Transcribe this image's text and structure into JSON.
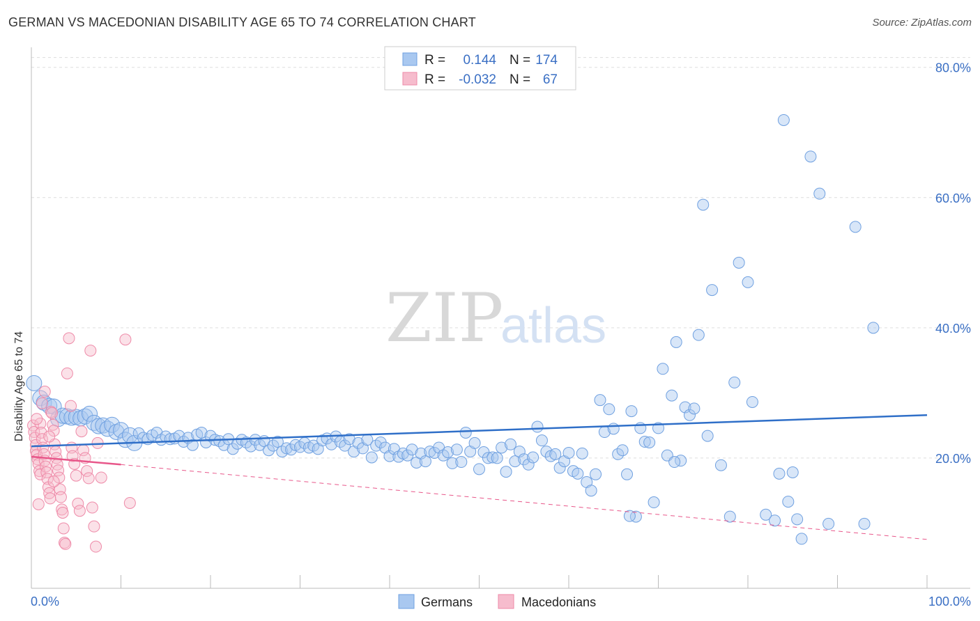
{
  "title": "GERMAN VS MACEDONIAN DISABILITY AGE 65 TO 74 CORRELATION CHART",
  "source": "Source: ZipAtlas.com",
  "watermark": {
    "zip": "ZIP",
    "atlas": "atlas"
  },
  "colors": {
    "germans": "#6fa0e0",
    "germans_fill": "#a9c8f0",
    "germans_line": "#2f6fc8",
    "macedonians": "#ee8aa8",
    "macedonians_fill": "#f6bccd",
    "macedonians_line": "#e8578a",
    "axis_text": "#3a6fc4",
    "grid": "#dddddd"
  },
  "legend": {
    "rows": [
      {
        "r_label": "R =",
        "r_value": "0.144",
        "n_label": "N =",
        "n_value": "174"
      },
      {
        "r_label": "R =",
        "r_value": "-0.032",
        "n_label": "N =",
        "n_value": "67"
      }
    ]
  },
  "bottom_legend": [
    "Germans",
    "Macedonians"
  ],
  "chart_data": {
    "type": "scatter",
    "ylabel": "Disability Age 65 to 74",
    "xlim": [
      0,
      100
    ],
    "ylim": [
      0,
      82
    ],
    "x_tick_labels": [
      "0.0%",
      "100.0%"
    ],
    "y_ticks": [
      20,
      40,
      60,
      80
    ],
    "y_tick_labels": [
      "20.0%",
      "40.0%",
      "60.0%",
      "80.0%"
    ],
    "grid": true,
    "legend_position": "top-center",
    "series": [
      {
        "name": "Germans",
        "r": 0.144,
        "n": 174,
        "trend": {
          "x": [
            0,
            100
          ],
          "y": [
            21.8,
            26.6
          ]
        },
        "points": [
          [
            0.3,
            31.5
          ],
          [
            1.0,
            29.2
          ],
          [
            1.4,
            28.5
          ],
          [
            2.0,
            28.0
          ],
          [
            2.5,
            27.9
          ],
          [
            3.0,
            26.0
          ],
          [
            3.5,
            26.5
          ],
          [
            4.0,
            26.4
          ],
          [
            4.5,
            26.2
          ],
          [
            5.0,
            26.3
          ],
          [
            5.5,
            26.1
          ],
          [
            6.0,
            26.4
          ],
          [
            6.5,
            26.8
          ],
          [
            7.0,
            25.4
          ],
          [
            7.5,
            24.9
          ],
          [
            8.0,
            25.0
          ],
          [
            8.5,
            24.5
          ],
          [
            9.0,
            25.1
          ],
          [
            9.5,
            24.0
          ],
          [
            10.0,
            24.3
          ],
          [
            10.5,
            22.8
          ],
          [
            11.0,
            23.5
          ],
          [
            11.5,
            22.3
          ],
          [
            12.0,
            23.8
          ],
          [
            12.5,
            23.1
          ],
          [
            13.0,
            22.9
          ],
          [
            13.5,
            23.5
          ],
          [
            14.0,
            23.9
          ],
          [
            14.5,
            22.8
          ],
          [
            15.0,
            23.3
          ],
          [
            15.5,
            22.9
          ],
          [
            16.0,
            23.0
          ],
          [
            16.5,
            23.4
          ],
          [
            17.0,
            22.5
          ],
          [
            17.5,
            23.1
          ],
          [
            18.0,
            22.0
          ],
          [
            18.5,
            23.6
          ],
          [
            19.0,
            23.9
          ],
          [
            19.5,
            22.4
          ],
          [
            20.0,
            23.4
          ],
          [
            20.5,
            22.8
          ],
          [
            21.0,
            22.6
          ],
          [
            21.5,
            22.0
          ],
          [
            22.0,
            22.9
          ],
          [
            22.5,
            21.4
          ],
          [
            23.0,
            22.2
          ],
          [
            23.5,
            22.8
          ],
          [
            24.0,
            22.4
          ],
          [
            24.5,
            21.8
          ],
          [
            25.0,
            22.8
          ],
          [
            25.5,
            22.0
          ],
          [
            26.0,
            22.6
          ],
          [
            26.5,
            21.2
          ],
          [
            27.0,
            21.9
          ],
          [
            27.5,
            22.5
          ],
          [
            28.0,
            21.0
          ],
          [
            28.5,
            21.5
          ],
          [
            29.0,
            21.3
          ],
          [
            29.5,
            22.0
          ],
          [
            30.0,
            21.7
          ],
          [
            30.5,
            22.3
          ],
          [
            31.0,
            21.6
          ],
          [
            31.5,
            21.9
          ],
          [
            32.0,
            21.4
          ],
          [
            32.5,
            22.7
          ],
          [
            33.0,
            23.0
          ],
          [
            33.5,
            22.1
          ],
          [
            34.0,
            23.3
          ],
          [
            34.5,
            22.5
          ],
          [
            35.0,
            21.9
          ],
          [
            35.5,
            22.9
          ],
          [
            36.0,
            21.0
          ],
          [
            36.5,
            22.3
          ],
          [
            37.0,
            21.5
          ],
          [
            37.5,
            22.8
          ],
          [
            38.0,
            20.1
          ],
          [
            38.5,
            21.9
          ],
          [
            39.0,
            22.4
          ],
          [
            39.5,
            21.6
          ],
          [
            40.0,
            20.3
          ],
          [
            40.5,
            21.4
          ],
          [
            41.0,
            20.2
          ],
          [
            41.5,
            20.7
          ],
          [
            42.0,
            20.4
          ],
          [
            42.5,
            21.3
          ],
          [
            43.0,
            19.3
          ],
          [
            43.5,
            20.7
          ],
          [
            44.0,
            19.5
          ],
          [
            44.5,
            21.0
          ],
          [
            45.0,
            20.8
          ],
          [
            45.5,
            21.6
          ],
          [
            46.0,
            20.4
          ],
          [
            46.5,
            20.9
          ],
          [
            47.0,
            19.2
          ],
          [
            47.5,
            21.3
          ],
          [
            48.0,
            19.4
          ],
          [
            48.5,
            23.9
          ],
          [
            49.0,
            21.0
          ],
          [
            49.5,
            22.3
          ],
          [
            50.0,
            18.3
          ],
          [
            50.5,
            20.9
          ],
          [
            51.0,
            20.0
          ],
          [
            51.5,
            20.1
          ],
          [
            52.0,
            20.0
          ],
          [
            52.5,
            21.6
          ],
          [
            53.0,
            17.9
          ],
          [
            53.5,
            22.1
          ],
          [
            54.0,
            19.5
          ],
          [
            54.5,
            21.0
          ],
          [
            55.0,
            19.8
          ],
          [
            55.5,
            19.0
          ],
          [
            56.0,
            20.1
          ],
          [
            56.5,
            24.8
          ],
          [
            57.0,
            22.7
          ],
          [
            57.5,
            21.0
          ],
          [
            58.0,
            20.3
          ],
          [
            58.5,
            20.6
          ],
          [
            59.0,
            18.5
          ],
          [
            59.5,
            19.5
          ],
          [
            60.0,
            20.8
          ],
          [
            60.5,
            18.0
          ],
          [
            61.0,
            17.6
          ],
          [
            61.5,
            20.7
          ],
          [
            62.0,
            16.3
          ],
          [
            62.5,
            15.0
          ],
          [
            63.0,
            17.5
          ],
          [
            63.5,
            28.9
          ],
          [
            64.0,
            24.0
          ],
          [
            64.5,
            27.5
          ],
          [
            65.0,
            24.5
          ],
          [
            65.5,
            20.6
          ],
          [
            66.0,
            21.2
          ],
          [
            66.5,
            17.5
          ],
          [
            67.0,
            27.2
          ],
          [
            67.5,
            11.0
          ],
          [
            68.0,
            24.6
          ],
          [
            68.5,
            22.5
          ],
          [
            69.0,
            22.4
          ],
          [
            69.5,
            13.2
          ],
          [
            70.0,
            24.6
          ],
          [
            70.5,
            33.7
          ],
          [
            71.0,
            20.4
          ],
          [
            71.5,
            29.6
          ],
          [
            72.0,
            37.8
          ],
          [
            72.5,
            19.6
          ],
          [
            73.0,
            27.8
          ],
          [
            73.5,
            26.6
          ],
          [
            74.0,
            27.6
          ],
          [
            74.5,
            38.9
          ],
          [
            75.0,
            58.9
          ],
          [
            75.5,
            23.4
          ],
          [
            76.0,
            45.8
          ],
          [
            77.0,
            18.9
          ],
          [
            78.0,
            11.0
          ],
          [
            78.5,
            31.6
          ],
          [
            79.0,
            50.0
          ],
          [
            80.0,
            47.0
          ],
          [
            80.5,
            28.6
          ],
          [
            82.0,
            11.3
          ],
          [
            83.0,
            10.4
          ],
          [
            83.5,
            17.6
          ],
          [
            84.0,
            71.9
          ],
          [
            84.5,
            13.3
          ],
          [
            85.0,
            17.8
          ],
          [
            86.0,
            7.6
          ],
          [
            87.0,
            66.3
          ],
          [
            88.0,
            60.6
          ],
          [
            89.0,
            9.9
          ],
          [
            92.0,
            55.5
          ],
          [
            93.0,
            9.9
          ],
          [
            94.0,
            40.0
          ],
          [
            85.5,
            10.6
          ],
          [
            71.8,
            19.4
          ],
          [
            66.8,
            11.1
          ]
        ]
      },
      {
        "name": "Macedonians",
        "r": -0.032,
        "n": 67,
        "trend": {
          "x": [
            0,
            10
          ],
          "y": [
            20.2,
            19.0
          ]
        },
        "trend_extension": {
          "x": [
            10,
            100
          ],
          "y": [
            19.0,
            7.5
          ]
        },
        "points": [
          [
            0.2,
            25.0
          ],
          [
            0.3,
            24.0
          ],
          [
            0.4,
            23.1
          ],
          [
            0.5,
            22.0
          ],
          [
            0.5,
            21.1
          ],
          [
            0.6,
            20.5
          ],
          [
            0.7,
            19.8
          ],
          [
            0.8,
            19.1
          ],
          [
            0.9,
            18.0
          ],
          [
            1.0,
            17.5
          ],
          [
            1.0,
            25.3
          ],
          [
            1.1,
            23.9
          ],
          [
            1.2,
            22.9
          ],
          [
            1.3,
            21.6
          ],
          [
            1.4,
            20.6
          ],
          [
            1.5,
            19.6
          ],
          [
            1.6,
            18.7
          ],
          [
            1.7,
            17.8
          ],
          [
            1.8,
            16.8
          ],
          [
            1.9,
            15.5
          ],
          [
            2.0,
            14.6
          ],
          [
            2.1,
            13.8
          ],
          [
            2.2,
            27.1
          ],
          [
            2.3,
            26.9
          ],
          [
            2.4,
            25.1
          ],
          [
            2.5,
            24.2
          ],
          [
            2.6,
            22.1
          ],
          [
            2.7,
            21.0
          ],
          [
            2.8,
            20.0
          ],
          [
            2.9,
            19.0
          ],
          [
            3.0,
            18.1
          ],
          [
            3.1,
            17.0
          ],
          [
            3.2,
            15.2
          ],
          [
            3.3,
            14.0
          ],
          [
            3.4,
            12.1
          ],
          [
            3.5,
            11.6
          ],
          [
            3.6,
            9.2
          ],
          [
            3.7,
            7.0
          ],
          [
            3.8,
            6.8
          ],
          [
            4.0,
            33.0
          ],
          [
            4.2,
            38.4
          ],
          [
            4.4,
            28.0
          ],
          [
            4.5,
            21.6
          ],
          [
            4.6,
            20.3
          ],
          [
            4.8,
            19.1
          ],
          [
            5.0,
            17.3
          ],
          [
            5.2,
            13.0
          ],
          [
            5.4,
            11.9
          ],
          [
            5.6,
            24.1
          ],
          [
            5.8,
            21.2
          ],
          [
            6.0,
            20.0
          ],
          [
            6.2,
            18.0
          ],
          [
            6.4,
            16.9
          ],
          [
            6.6,
            36.5
          ],
          [
            6.8,
            12.4
          ],
          [
            7.0,
            9.5
          ],
          [
            7.2,
            6.4
          ],
          [
            7.4,
            22.3
          ],
          [
            7.8,
            17.0
          ],
          [
            10.5,
            38.2
          ],
          [
            11.0,
            13.1
          ],
          [
            0.6,
            26.0
          ],
          [
            1.2,
            28.4
          ],
          [
            2.0,
            23.3
          ],
          [
            1.5,
            30.2
          ],
          [
            0.8,
            12.9
          ],
          [
            2.5,
            16.4
          ]
        ]
      }
    ]
  }
}
